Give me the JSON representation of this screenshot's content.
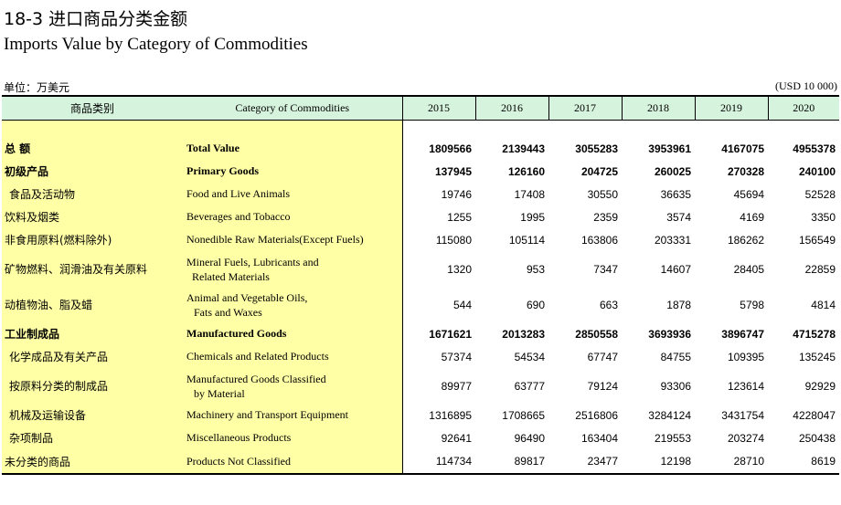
{
  "header": {
    "title_cn": "18-3  进口商品分类金额",
    "title_en": "Imports Value by Category of Commodities",
    "unit_cn": "单位：万美元",
    "unit_en": "(USD 10 000)"
  },
  "table": {
    "col_cn": "商品类别",
    "col_en": "Category of Commodities",
    "years": [
      "2015",
      "2016",
      "2017",
      "2018",
      "2019",
      "2020"
    ],
    "rows": [
      {
        "cn": "总  额",
        "en": "Total Value",
        "values": [
          "1809566",
          "2139443",
          "3055283",
          "3953961",
          "4167075",
          "4955378"
        ]
      },
      {
        "cn": "初级产品",
        "en": "Primary Goods",
        "values": [
          "137945",
          "126160",
          "204725",
          "260025",
          "270328",
          "240100"
        ]
      },
      {
        "cn": "食品及活动物",
        "en": "Food and Live Animals",
        "values": [
          "19746",
          "17408",
          "30550",
          "36635",
          "45694",
          "52528"
        ]
      },
      {
        "cn": "饮料及烟类",
        "en": "Beverages and Tobacco",
        "values": [
          "1255",
          "1995",
          "2359",
          "3574",
          "4169",
          "3350"
        ]
      },
      {
        "cn": "非食用原料(燃料除外)",
        "en": "Nonedible Raw Materials(Except Fuels)",
        "values": [
          "115080",
          "105114",
          "163806",
          "203331",
          "186262",
          "156549"
        ]
      },
      {
        "cn": "矿物燃料、润滑油及有关原料",
        "en1": "Mineral Fuels, Lubricants and",
        "en2": "  Related Materials",
        "values": [
          "1320",
          "953",
          "7347",
          "14607",
          "28405",
          "22859"
        ]
      },
      {
        "cn": "动植物油、脂及蜡",
        "en1": "Animal and Vegetable Oils,",
        "en2": "   Fats and Waxes",
        "values": [
          "544",
          "690",
          "663",
          "1878",
          "5798",
          "4814"
        ]
      },
      {
        "cn": "工业制成品",
        "en": "Manufactured Goods",
        "values": [
          "1671621",
          "2013283",
          "2850558",
          "3693936",
          "3896747",
          "4715278"
        ]
      },
      {
        "cn": "化学成品及有关产品",
        "en": "Chemicals and Related Products",
        "values": [
          "57374",
          "54534",
          "67747",
          "84755",
          "109395",
          "135245"
        ]
      },
      {
        "cn": "按原料分类的制成品",
        "en1": "Manufactured Goods Classified",
        "en2": "  by Material",
        "values": [
          "89977",
          "63777",
          "79124",
          "93306",
          "123614",
          "92929"
        ]
      },
      {
        "cn": "机械及运输设备",
        "en": "Machinery and Transport Equipment",
        "values": [
          "1316895",
          "1708665",
          "2516806",
          "3284124",
          "3431754",
          "4228047"
        ]
      },
      {
        "cn": "杂项制品",
        "en": "Miscellaneous Products",
        "values": [
          "92641",
          "96490",
          "163404",
          "219553",
          "203274",
          "250438"
        ]
      },
      {
        "cn": "未分类的商品",
        "en": "Products Not Classified",
        "values": [
          "114734",
          "89817",
          "23477",
          "12198",
          "28710",
          "8619"
        ]
      }
    ]
  }
}
